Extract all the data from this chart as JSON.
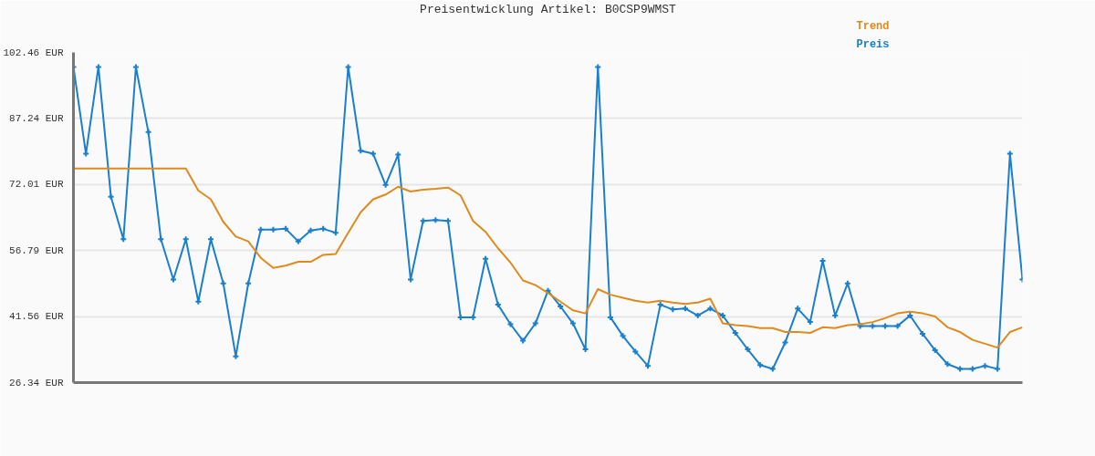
{
  "chart_data": {
    "type": "line",
    "title": "Preisentwicklung Artikel: B0CSP9WMST",
    "categories": [
      null,
      null,
      null,
      null,
      null,
      null,
      null,
      null,
      null,
      null,
      null,
      null,
      null,
      null,
      null,
      null,
      null,
      null,
      null,
      null,
      null,
      null,
      null,
      null,
      null,
      null,
      null,
      null,
      null,
      null,
      null,
      null,
      null,
      null,
      null,
      null,
      null,
      null,
      null,
      null,
      null,
      null,
      null,
      null,
      null,
      null,
      null,
      null,
      null,
      null,
      null,
      null,
      null,
      null,
      null,
      null,
      null,
      null,
      null,
      null,
      null,
      null,
      null,
      null,
      null,
      null,
      null,
      null,
      null,
      null,
      null,
      null,
      null,
      null,
      null,
      null,
      null
    ],
    "series": [
      {
        "name": "Preis",
        "color": "#1a7fcc",
        "marker": "cross",
        "values": [
          99.1,
          79.1,
          99.1,
          69.2,
          59.4,
          99.1,
          84.1,
          59.4,
          50.1,
          59.4,
          45.0,
          59.4,
          49.2,
          32.4,
          49.2,
          61.6,
          61.6,
          61.8,
          58.9,
          61.4,
          61.8,
          60.9,
          99.1,
          79.8,
          79.1,
          71.9,
          78.9,
          50.1,
          63.6,
          63.8,
          63.6,
          41.4,
          41.4,
          54.9,
          44.3,
          39.8,
          36.0,
          40.0,
          47.5,
          43.9,
          40.0,
          34.0,
          99.1,
          41.4,
          37.1,
          33.5,
          30.2,
          44.3,
          43.2,
          43.4,
          41.8,
          43.4,
          41.8,
          37.8,
          34.0,
          30.4,
          29.5,
          35.6,
          43.4,
          40.3,
          54.4,
          41.8,
          49.2,
          39.4,
          39.4,
          39.4,
          39.4,
          41.8,
          37.6,
          33.8,
          30.6,
          29.5,
          29.5,
          30.2,
          29.5,
          79.1,
          50.1
        ]
      },
      {
        "name": "Trend",
        "color": "#e08a1e",
        "marker": "none",
        "values": [
          75.7,
          75.7,
          75.7,
          75.7,
          75.7,
          75.7,
          75.7,
          75.7,
          75.7,
          75.7,
          70.6,
          68.6,
          63.4,
          60.0,
          58.9,
          55.1,
          52.8,
          53.3,
          54.2,
          54.2,
          55.8,
          56.0,
          60.9,
          65.6,
          68.6,
          69.7,
          71.5,
          70.4,
          70.8,
          71.0,
          71.3,
          69.5,
          63.6,
          61.1,
          57.3,
          54.0,
          49.9,
          48.8,
          47.0,
          45.0,
          43.0,
          42.3,
          47.9,
          46.6,
          45.9,
          45.2,
          44.8,
          45.2,
          44.8,
          44.5,
          44.8,
          45.7,
          40.0,
          39.6,
          39.4,
          38.9,
          38.9,
          38.0,
          38.0,
          37.8,
          39.1,
          38.9,
          39.6,
          39.8,
          40.3,
          41.2,
          42.3,
          42.7,
          42.3,
          41.6,
          39.1,
          38.0,
          36.2,
          35.3,
          34.4,
          38.0,
          39.1
        ]
      }
    ],
    "ylim": [
      26.34,
      102.46
    ],
    "yticks": [
      {
        "value": 26.34,
        "label": "26.34 EUR"
      },
      {
        "value": 41.56,
        "label": "41.56 EUR"
      },
      {
        "value": 56.79,
        "label": "56.79 EUR"
      },
      {
        "value": 72.01,
        "label": "72.01 EUR"
      },
      {
        "value": 87.24,
        "label": "87.24 EUR"
      },
      {
        "value": 102.46,
        "label": "102.46 EUR"
      }
    ],
    "grid": "y",
    "tick_labels": "y"
  }
}
